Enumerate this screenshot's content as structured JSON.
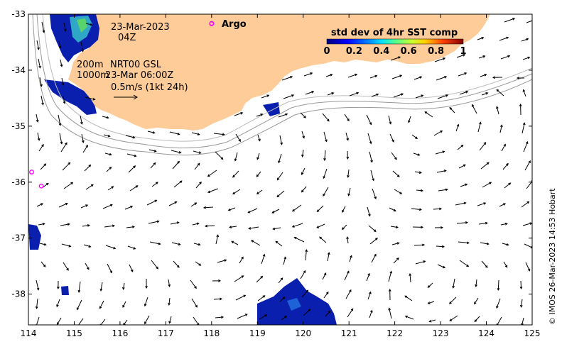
{
  "map": {
    "lon_ticks": [
      "114",
      "115",
      "116",
      "117",
      "118",
      "119",
      "120",
      "121",
      "122",
      "123",
      "124",
      "125"
    ],
    "lat_ticks": [
      "-33",
      "-34",
      "-35",
      "-36",
      "-37",
      "-38"
    ],
    "lon_range": [
      114,
      125
    ],
    "lat_range": [
      -38.55,
      -33.0
    ],
    "land_color": "#fdcc99",
    "sst_colors": [
      "#00007f",
      "#0050ff",
      "#00c8ff",
      "#50ff7f",
      "#ffe600",
      "#ff5000",
      "#7f0000"
    ]
  },
  "labels": {
    "date": "23-Mar-2023",
    "time": "04Z",
    "contour_200": "200m",
    "contour_1000": "1000m",
    "product": "NRT00 GSL",
    "product_time": "23-Mar 06:00Z",
    "scale": "0.5m/s (1kt 24h)",
    "argo": "Argo",
    "copyright": "© IMOS 26-Mar-2023 14:53 Hobart"
  },
  "colorbar": {
    "title": "std dev of 4hr SST comp",
    "ticks": [
      "0",
      "0.2",
      "0.4",
      "0.6",
      "0.8",
      "1"
    ]
  },
  "argo_floats": [
    {
      "lon": 118.0,
      "lat": -33.17
    },
    {
      "lon": 114.07,
      "lat": -35.82
    },
    {
      "lon": 114.28,
      "lat": -36.07
    }
  ]
}
